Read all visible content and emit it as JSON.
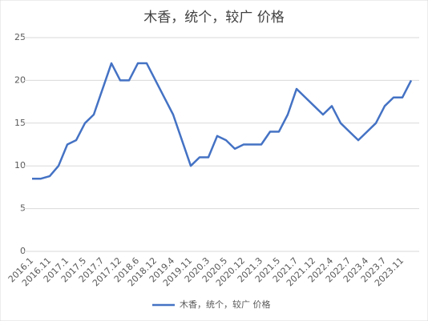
{
  "chart_data": {
    "type": "line",
    "title": "木香，统个，较广 价格",
    "categories": [
      "2016.1",
      null,
      "2016.11",
      null,
      "2017.1",
      null,
      "2017.5",
      null,
      "2017.7",
      null,
      "2017.12",
      null,
      "2018.6",
      null,
      "2018.12",
      null,
      "2019.4",
      null,
      "2019.11",
      null,
      "2020.3",
      null,
      "2020.5",
      null,
      "2020.12",
      null,
      "2021.3",
      null,
      "2021.5",
      null,
      "2021.7",
      null,
      "2021.12",
      null,
      "2022.4",
      null,
      "2022.7",
      null,
      "2023.4",
      null,
      "2023.7",
      null,
      "2023.11",
      null
    ],
    "series": [
      {
        "name": "木香，统个，较广 价格",
        "color": "#4472c4",
        "values": [
          8.5,
          8.5,
          8.8,
          10,
          12.5,
          13,
          15,
          16,
          19,
          22,
          20,
          20,
          22,
          22,
          20,
          18,
          16,
          13,
          10,
          11,
          11,
          13.5,
          13,
          12,
          12.5,
          12.5,
          12.5,
          14,
          14,
          16,
          19,
          18,
          17,
          16,
          17,
          15,
          14,
          13,
          14,
          15,
          17,
          18,
          18,
          20
        ]
      }
    ],
    "ylim": [
      0,
      25
    ],
    "yticks": [
      0,
      5,
      10,
      15,
      20,
      25
    ],
    "grid": true,
    "legend": "bottom"
  }
}
